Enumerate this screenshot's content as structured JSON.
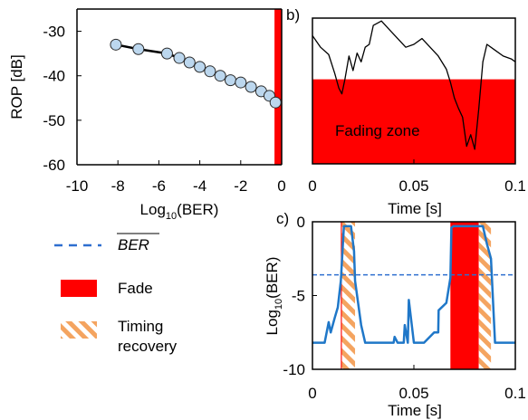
{
  "colors": {
    "fade": "#ff0000",
    "series": "#1f77c8",
    "mean_line": "#2e6fd0",
    "marker_fill": "#bcd7ee",
    "hatch": "#f4a460",
    "axis": "#000000"
  },
  "legend": {
    "mean_label": "BER",
    "fade_label": "Fade",
    "timing_label_line1": "Timing",
    "timing_label_line2": "recovery"
  },
  "chart_data": [
    {
      "panel": "a",
      "type": "line",
      "panel_label": "",
      "xlabel_prefix": "Log",
      "xlabel_sub": "10",
      "xlabel_suffix": "(BER)",
      "ylabel": "ROP [dB]",
      "xlim": [
        -10,
        0
      ],
      "ylim": [
        -60,
        -25
      ],
      "xticks": [
        "-10",
        "-8",
        "-6",
        "-4",
        "-2",
        "0"
      ],
      "yticks": [
        "-30",
        "-40",
        "-50",
        "-60"
      ],
      "x": [
        -8.1,
        -7.0,
        -5.6,
        -5.0,
        -4.5,
        -4.0,
        -3.5,
        -3.0,
        -2.5,
        -2.0,
        -1.5,
        -1.0,
        -0.6,
        -0.3
      ],
      "y": [
        -33,
        -34,
        -35,
        -36,
        -37,
        -38,
        -39,
        -40,
        -41,
        -41.5,
        -42.5,
        -43.5,
        -44.5,
        -46
      ],
      "fade_band_x": [
        -0.35,
        0
      ]
    },
    {
      "panel": "b",
      "type": "line",
      "panel_label": "b)",
      "xlabel": "Time [s]",
      "xlim": [
        0,
        0.1
      ],
      "ylim": [
        0,
        1
      ],
      "xticks": [
        "0",
        "0.05",
        "0.1"
      ],
      "fading_zone_label": "Fading zone",
      "fading_zone_top": 0.58,
      "x": [
        0,
        0.004,
        0.008,
        0.011,
        0.013,
        0.0145,
        0.016,
        0.018,
        0.02,
        0.022,
        0.024,
        0.026,
        0.028,
        0.03,
        0.034,
        0.038,
        0.042,
        0.046,
        0.05,
        0.054,
        0.058,
        0.062,
        0.066,
        0.068,
        0.07,
        0.072,
        0.074,
        0.076,
        0.078,
        0.08,
        0.082,
        0.084,
        0.086,
        0.09,
        0.094,
        0.098,
        0.1
      ],
      "y": [
        0.88,
        0.8,
        0.75,
        0.62,
        0.52,
        0.48,
        0.58,
        0.74,
        0.64,
        0.76,
        0.7,
        0.8,
        0.82,
        0.95,
        0.98,
        0.92,
        0.86,
        0.8,
        0.82,
        0.86,
        0.8,
        0.74,
        0.65,
        0.56,
        0.45,
        0.38,
        0.32,
        0.12,
        0.2,
        0.1,
        0.38,
        0.7,
        0.82,
        0.78,
        0.74,
        0.72,
        0.7
      ]
    },
    {
      "panel": "c",
      "type": "line",
      "panel_label": "c)",
      "xlabel": "Time [s]",
      "ylabel_prefix": "Log",
      "ylabel_sub": "10",
      "ylabel_suffix": "(BER)",
      "xlim": [
        0,
        0.1
      ],
      "ylim": [
        -10,
        0
      ],
      "xticks": [
        "0",
        "0.05",
        "0.1"
      ],
      "yticks": [
        "0",
        "-5",
        "-10"
      ],
      "mean_ber": -3.6,
      "fade_bands": [
        [
          0.014,
          0.0145
        ],
        [
          0.068,
          0.082
        ]
      ],
      "timing_bands": [
        [
          0.0145,
          0.021
        ],
        [
          0.082,
          0.088
        ]
      ],
      "x": [
        0,
        0.006,
        0.008,
        0.009,
        0.011,
        0.0125,
        0.014,
        0.0155,
        0.019,
        0.0205,
        0.021,
        0.024,
        0.026,
        0.028,
        0.04,
        0.0405,
        0.042,
        0.0425,
        0.045,
        0.0455,
        0.047,
        0.0475,
        0.05,
        0.055,
        0.06,
        0.062,
        0.0622,
        0.066,
        0.068,
        0.0685,
        0.0695,
        0.082,
        0.084,
        0.086,
        0.088,
        0.09,
        0.095,
        0.1
      ],
      "y": [
        -8.2,
        -8.2,
        -6.8,
        -7.5,
        -6.5,
        -5.8,
        -4.0,
        -0.3,
        -0.3,
        -2.0,
        -4.0,
        -7.0,
        -8.2,
        -8.2,
        -8.2,
        -7.8,
        -8.2,
        -8.2,
        -8.2,
        -7.0,
        -8.2,
        -5.3,
        -8.2,
        -8.2,
        -7.5,
        -7.5,
        -6.0,
        -5.5,
        -3.8,
        -0.4,
        -0.3,
        -0.3,
        -0.3,
        -1.5,
        -2.5,
        -8.2,
        -8.2,
        -8.2
      ]
    }
  ]
}
